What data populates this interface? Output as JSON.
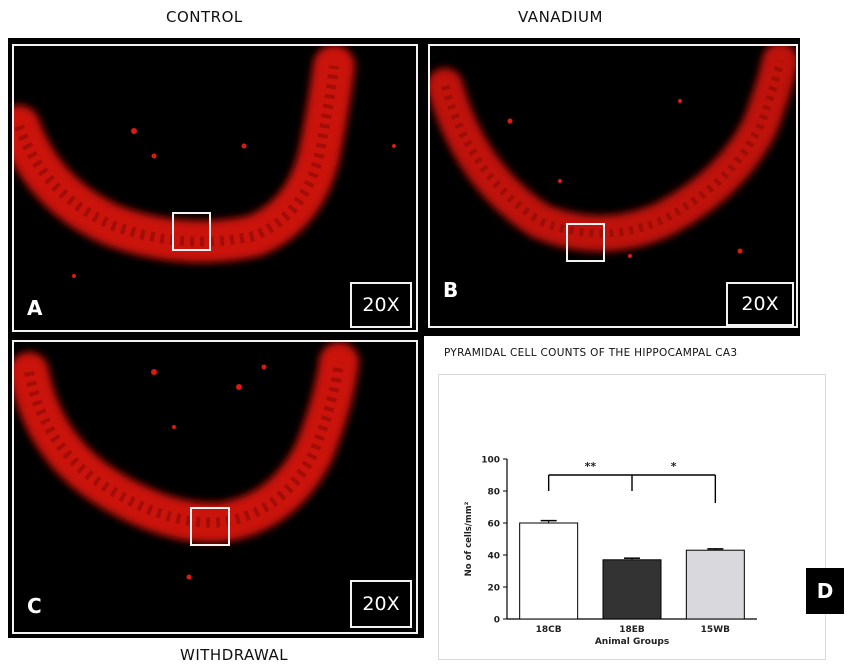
{
  "captions": {
    "control": "CONTROL",
    "vanadium": "VANADIUM",
    "withdrawal": "WITHDRAWAL"
  },
  "panels": [
    {
      "letter": "A",
      "magnification": "20X"
    },
    {
      "letter": "B",
      "magnification": "20X"
    },
    {
      "letter": "C",
      "magnification": "20X"
    }
  ],
  "colors": {
    "stain": "#e0180f",
    "stain_dark": "#8a0a05",
    "frame": "#000000",
    "border": "#f2f2f2"
  },
  "chart": {
    "title": "PYRAMIDAL CELL COUNTS OF THE HIPPOCAMPAL CA3",
    "panel_label": "D"
  },
  "chart_data": {
    "type": "bar",
    "categories": [
      "18CB",
      "18EB",
      "15WB"
    ],
    "values": [
      60,
      37,
      43
    ],
    "errors": [
      1.5,
      1,
      0.8
    ],
    "bar_colors": [
      "#ffffff",
      "#333333",
      "#d9d9dd"
    ],
    "xlabel": "Animal Groups",
    "ylabel": "No of cells/mm²",
    "ylim": [
      0,
      100
    ],
    "yticks": [
      0,
      20,
      40,
      60,
      80,
      100
    ],
    "significance": [
      {
        "from": "18CB",
        "to": "18EB",
        "label": "**"
      },
      {
        "from": "18EB",
        "to": "15WB",
        "label": "*"
      }
    ]
  }
}
